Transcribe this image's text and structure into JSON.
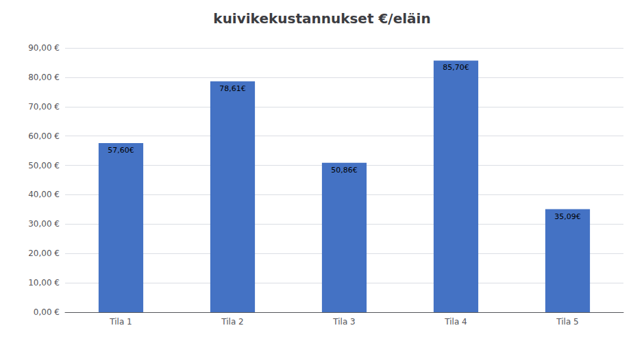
{
  "chart_data": {
    "type": "bar",
    "title": "kuivikekustannukset €/eläin",
    "categories": [
      "Tila 1",
      "Tila 2",
      "Tila 3",
      "Tila 4",
      "Tila 5"
    ],
    "values": [
      57.6,
      78.61,
      50.86,
      85.7,
      35.09
    ],
    "value_labels": [
      "57,60€",
      "78,61€",
      "50,86€",
      "85,70€",
      "35,09€"
    ],
    "color": "#4472C4",
    "ylim": [
      0,
      90
    ],
    "yticks": [
      {
        "value": 0,
        "label": "0,00 €"
      },
      {
        "value": 10,
        "label": "10,00 €"
      },
      {
        "value": 20,
        "label": "20,00 €"
      },
      {
        "value": 30,
        "label": "30,00 €"
      },
      {
        "value": 40,
        "label": "40,00 €"
      },
      {
        "value": 50,
        "label": "50,00 €"
      },
      {
        "value": 60,
        "label": "60,00 €"
      },
      {
        "value": 70,
        "label": "70,00 €"
      },
      {
        "value": 80,
        "label": "80,00 €"
      },
      {
        "value": 90,
        "label": "90,00 €"
      }
    ],
    "grid": true,
    "data_labels": true
  }
}
